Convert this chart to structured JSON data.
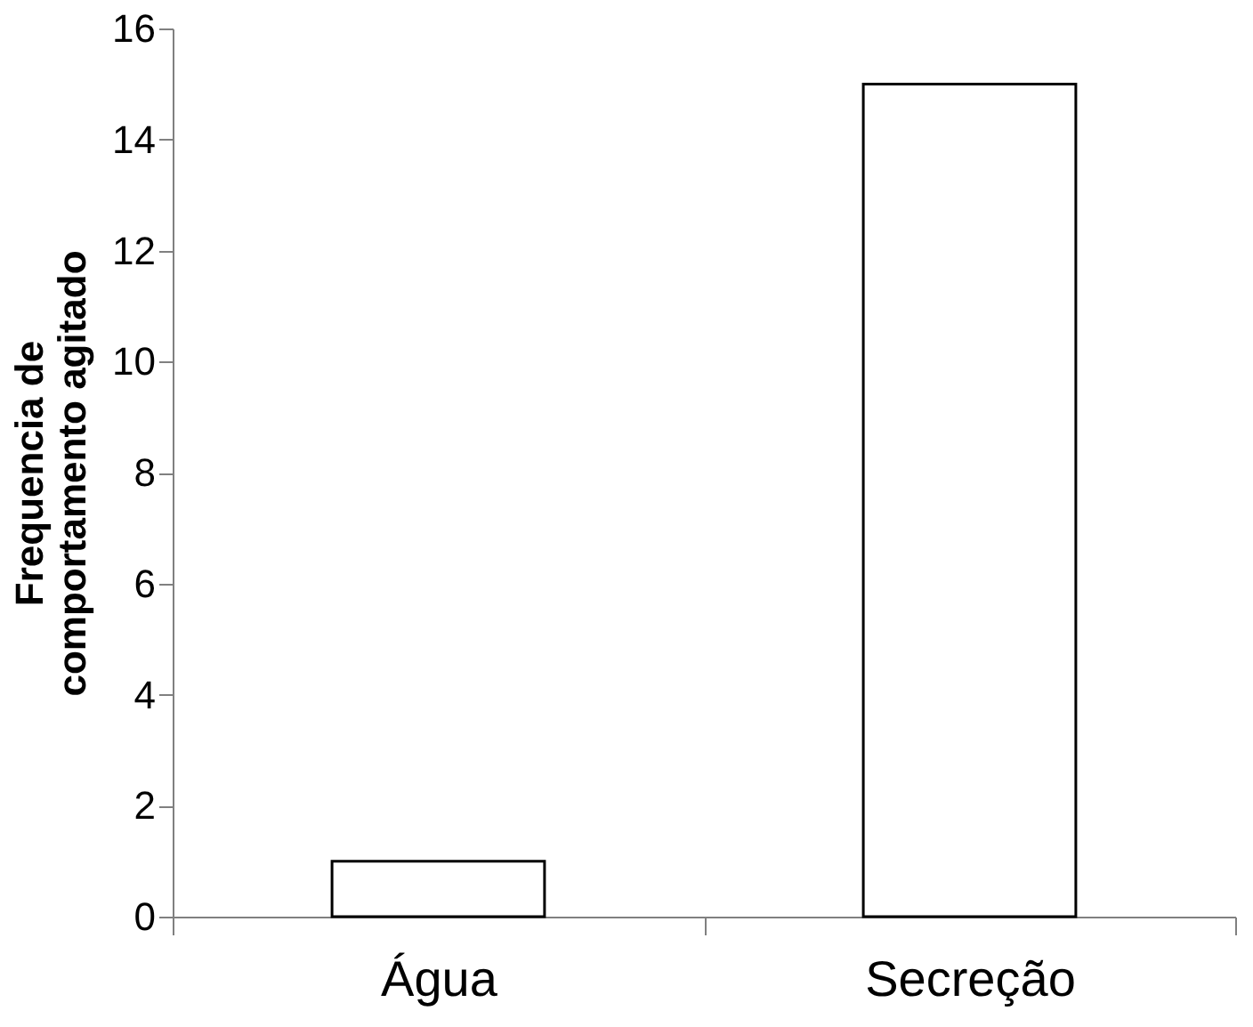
{
  "chart_data": {
    "type": "bar",
    "ylabel": "Frequencia de\ncomportamento agitado",
    "categories": [
      "Água",
      "Secreção"
    ],
    "values": [
      1,
      15
    ],
    "color": "#ffffff",
    "ylim": [
      0,
      16
    ],
    "yticks": [
      0,
      2,
      4,
      6,
      8,
      10,
      12,
      14,
      16
    ],
    "grid": false
  }
}
